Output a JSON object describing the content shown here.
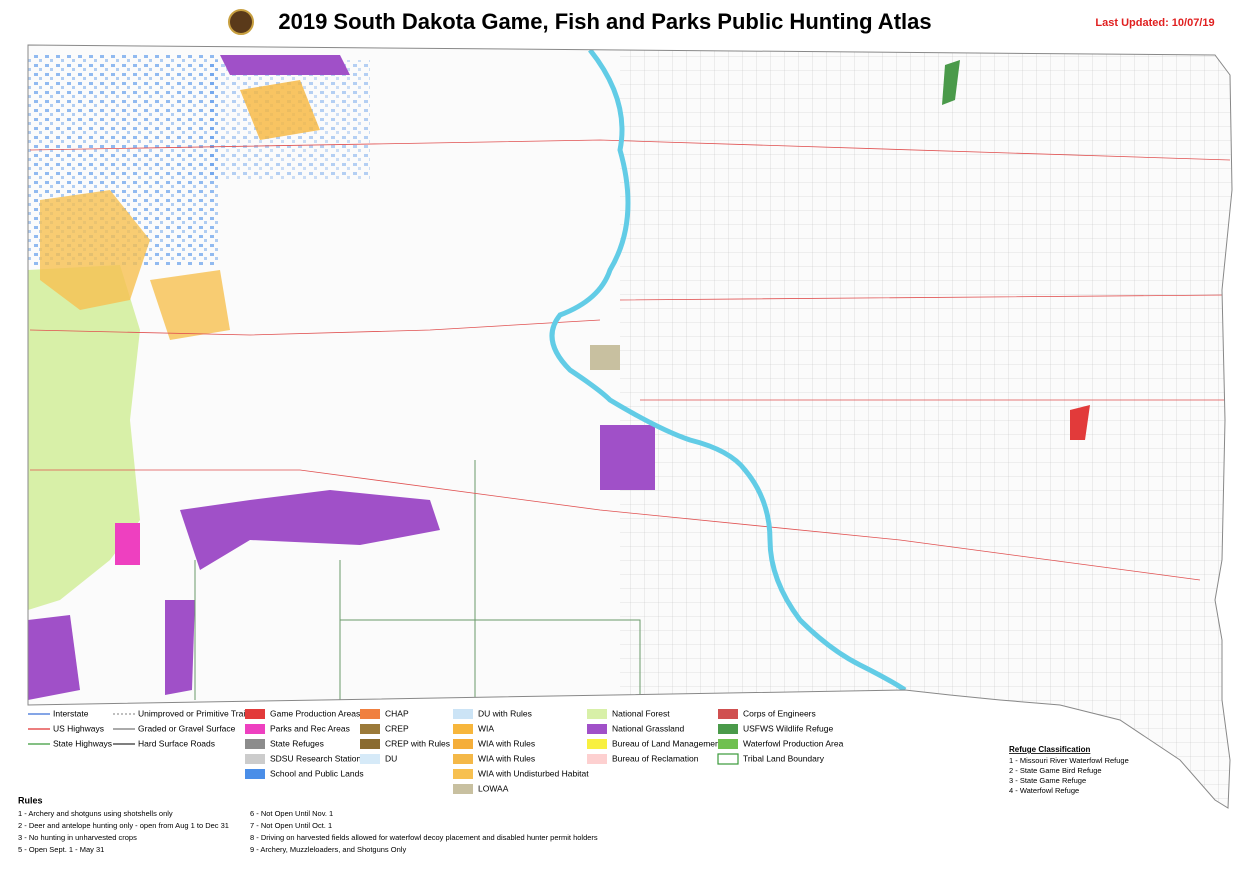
{
  "header": {
    "title": "2019 South Dakota Game, Fish and Parks Public Hunting Atlas",
    "last_updated": "Last Updated: 10/07/19"
  },
  "legend": {
    "columns": [
      [
        {
          "label": "Interstate",
          "color": "#3a6fd8"
        },
        {
          "label": "US Highways",
          "color": "#e03030"
        },
        {
          "label": "State Highways",
          "color": "#3a9a3a"
        }
      ],
      [
        {
          "label": "Unimproved or Primitive Trail",
          "color": "#999999"
        },
        {
          "label": "Graded or Gravel Surface",
          "color": "#777777"
        },
        {
          "label": "Hard Surface Roads",
          "color": "#333333"
        }
      ],
      [
        {
          "label": "Game Production Areas",
          "color": "#e23a3a"
        },
        {
          "label": "Parks and Rec Areas",
          "color": "#ee40c0"
        },
        {
          "label": "State Refuges",
          "color": "#8c8c8c"
        },
        {
          "label": "SDSU Research Stations",
          "color": "#cccccc"
        },
        {
          "label": "School and Public Lands",
          "color": "#4a8ee8"
        }
      ],
      [
        {
          "label": "CHAP",
          "color": "#f08040"
        },
        {
          "label": "CREP",
          "color": "#9b7a3a"
        },
        {
          "label": "CREP with Rules",
          "color": "#8a6b30"
        },
        {
          "label": "DU",
          "color": "#d6eaf8"
        }
      ],
      [
        {
          "label": "DU with Rules",
          "color": "#cce4f6"
        },
        {
          "label": "WIA",
          "color": "#f7b63c"
        },
        {
          "label": "WIA with Rules",
          "color": "#f5ae3a"
        },
        {
          "label": "WIA with Rules",
          "color": "#f4b848"
        },
        {
          "label": "WIA with Undisturbed Habitat",
          "color": "#f7c050"
        },
        {
          "label": "LOWAA",
          "color": "#c8c0a0"
        }
      ],
      [
        {
          "label": "National Forest",
          "color": "#d8f0a8"
        },
        {
          "label": "National Grassland",
          "color": "#a050c8"
        },
        {
          "label": "Bureau of Land Management",
          "color": "#f8f040"
        },
        {
          "label": "Bureau of Reclamation",
          "color": "#fdd0d0"
        }
      ],
      [
        {
          "label": "Corps of Engineers",
          "color": "#d05050"
        },
        {
          "label": "USFWS Wildlife Refuge",
          "color": "#4a9a4a"
        },
        {
          "label": "Waterfowl Production Area",
          "color": "#70c050"
        },
        {
          "label": "Tribal Land Boundary",
          "color": "#3a9a3a"
        }
      ]
    ]
  },
  "refuge": {
    "title": "Refuge Classification",
    "items": [
      "1 - Missouri River Waterfowl Refuge",
      "2 - State Game Bird Refuge",
      "3 - State Game Refuge",
      "4 - Waterfowl Refuge"
    ]
  },
  "rules": {
    "title": "Rules",
    "items": [
      "1 - Archery and shotguns using shotshells only",
      "2 - Deer and antelope hunting only - open from Aug 1 to Dec 31",
      "3 - No hunting in unharvested crops",
      "5 - Open Sept. 1 - May 31",
      "6 - Not Open Until Nov. 1",
      "7 - Not Open Until Oct. 1",
      "8 - Driving on harvested fields allowed for waterfowl decoy placement and disabled hunter permit holders",
      "9 - Archery, Muzzleloaders, and Shotguns Only"
    ]
  }
}
